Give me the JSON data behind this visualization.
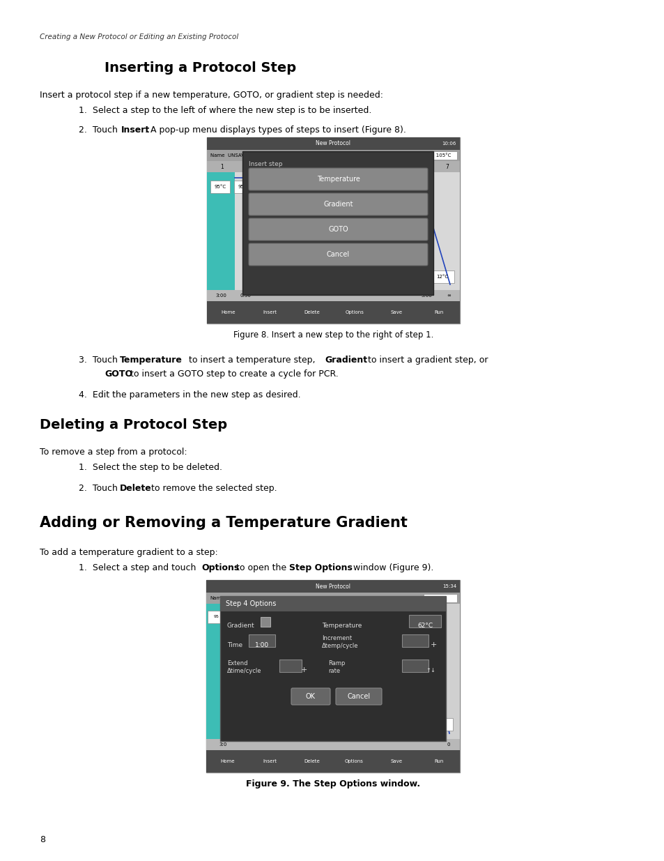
{
  "page_width": 9.54,
  "page_height": 12.35,
  "bg_color": "#ffffff",
  "header_italic": "Creating a New Protocol or Editing an Existing Protocol",
  "section1_title": "Inserting a Protocol Step",
  "section2_title": "Deleting a Protocol Step",
  "section3_title": "Adding or Removing a Temperature Gradient",
  "fig8_caption": "Figure 8. Insert a new step to the right of step 1.",
  "fig9_caption": "Figure 9. The Step Options window.",
  "page_number": "8",
  "toolbar_labels": [
    "Home",
    "Insert",
    "Delete",
    "Options",
    "Save",
    "Run"
  ]
}
